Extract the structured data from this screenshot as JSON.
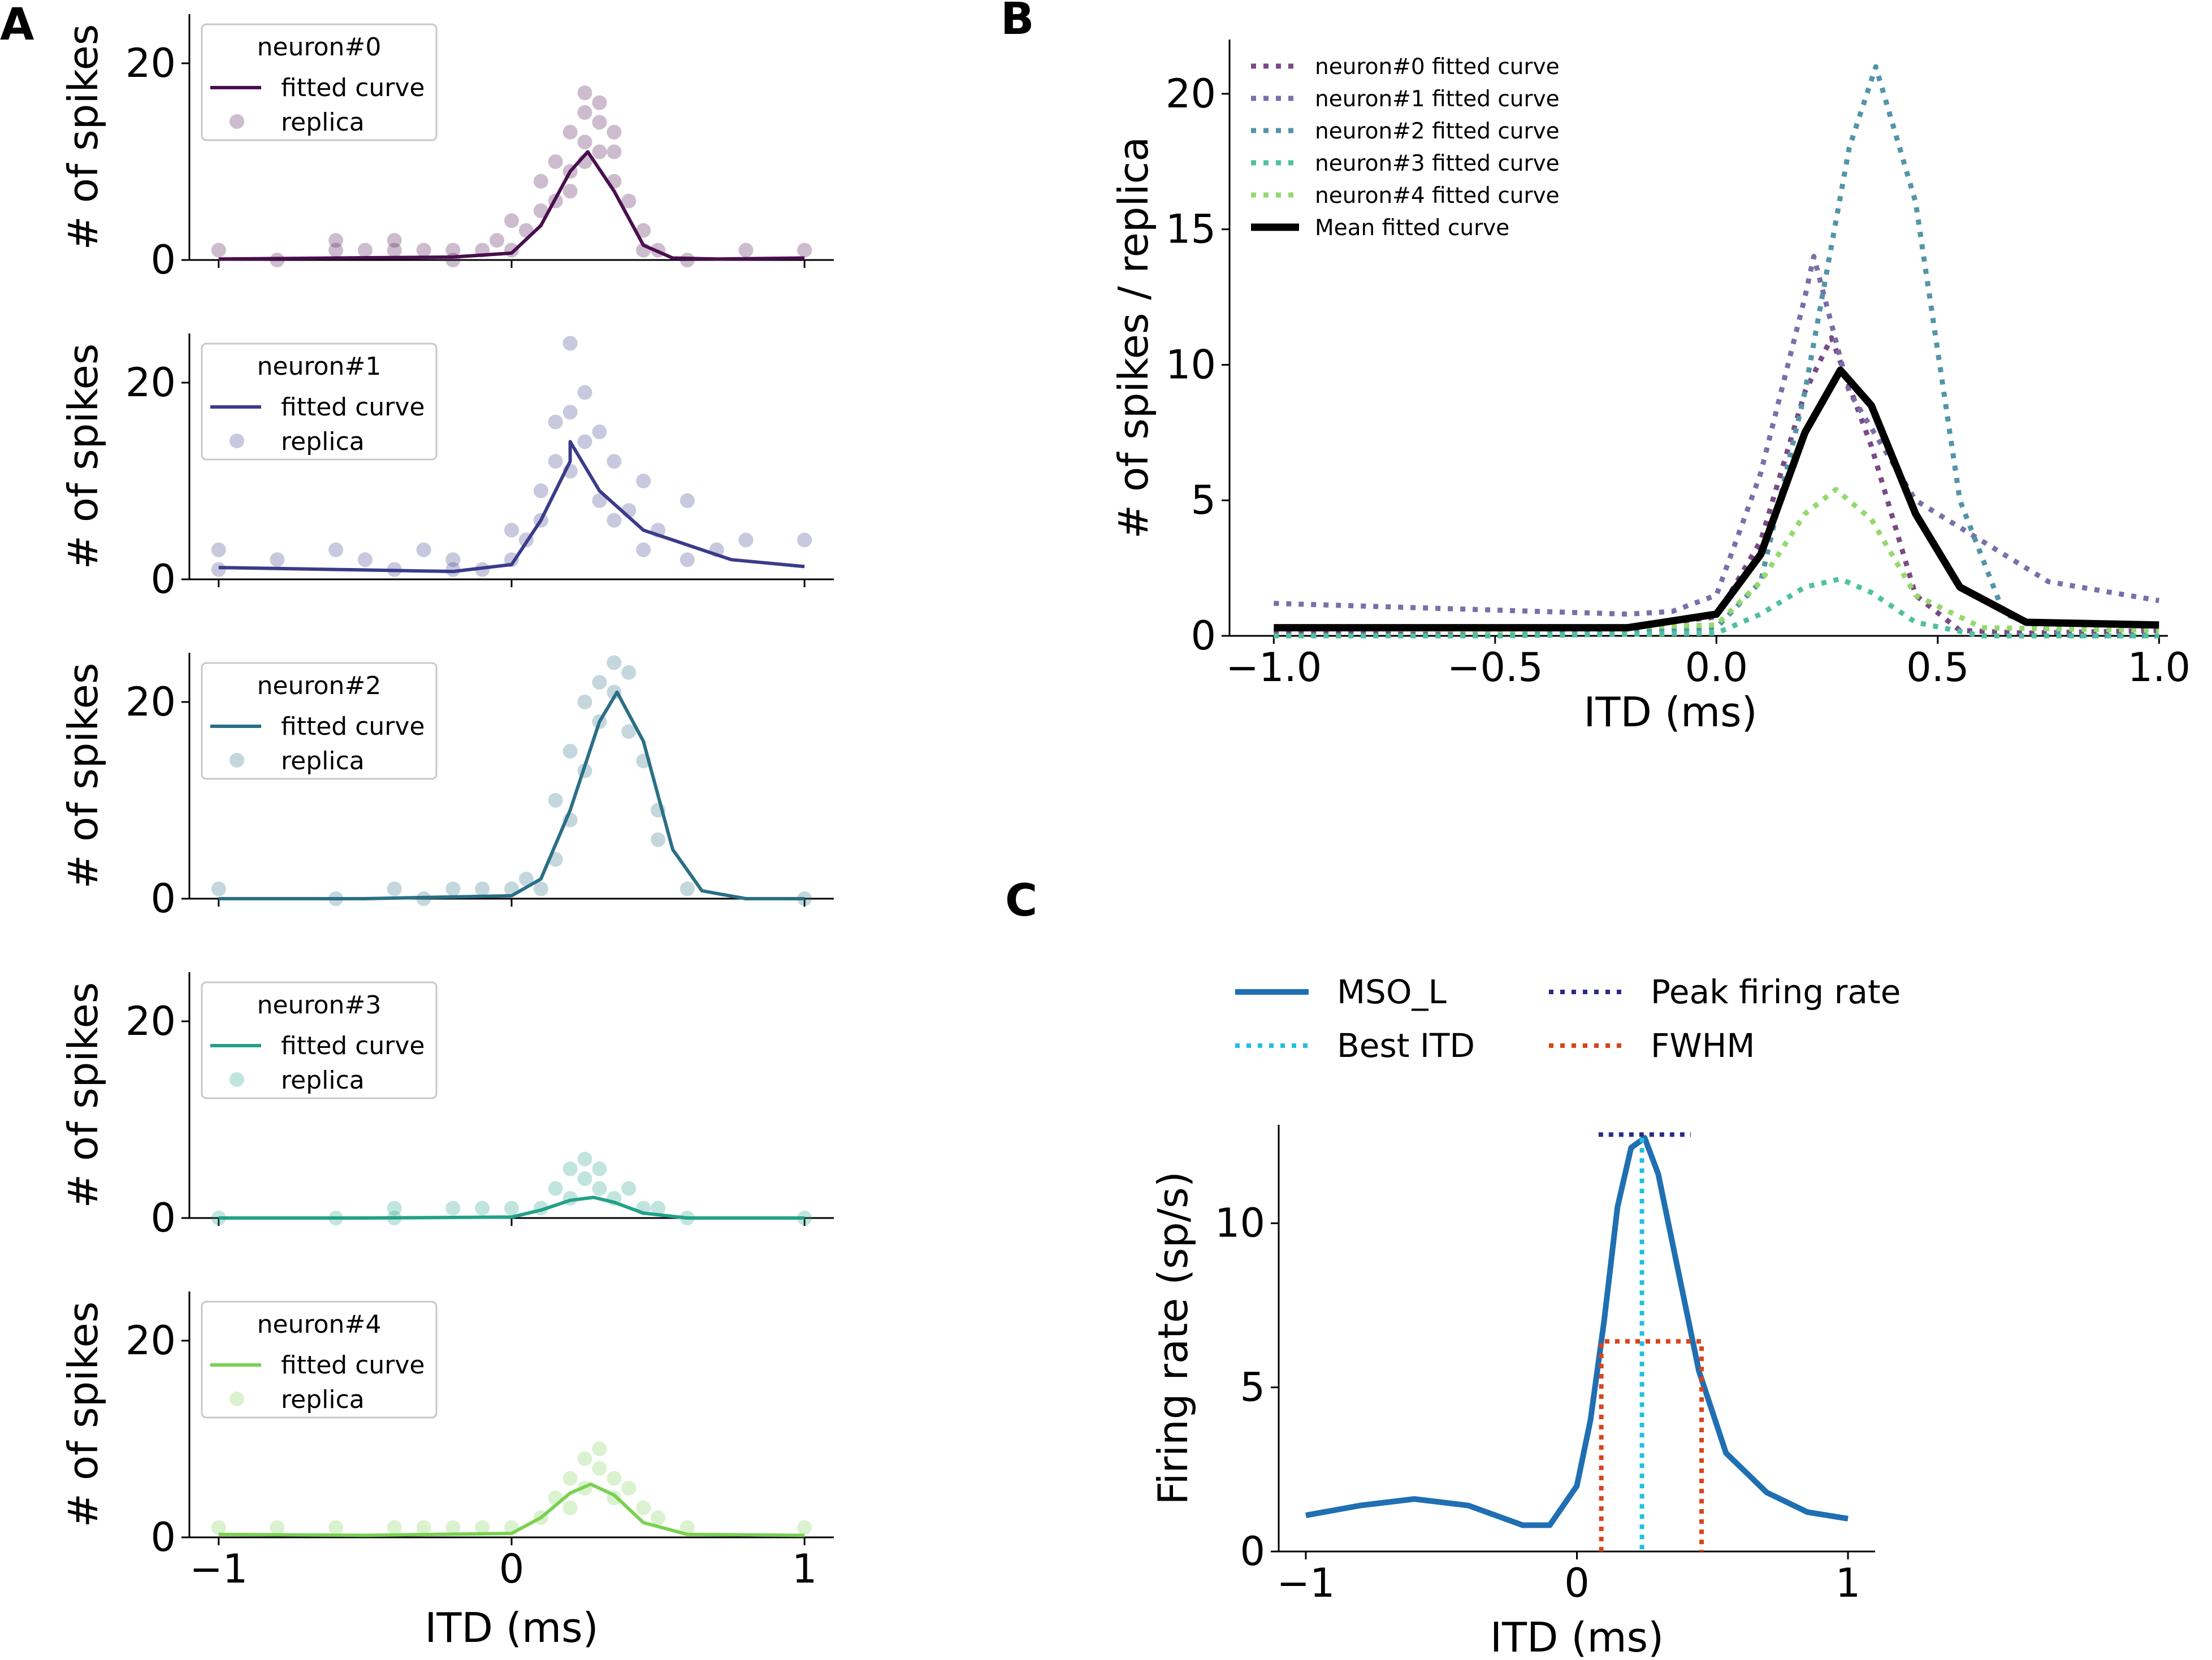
{
  "figure": {
    "panel_labels": [
      "A",
      "B",
      "C"
    ]
  },
  "chart_data": [
    {
      "panel": "A",
      "type": "scatter+line",
      "stacked_subplots": [
        {
          "legend_title": "neuron#0",
          "color": "#4a0e4e",
          "fitted_label": "fitted curve",
          "replica_label": "replica",
          "curve": {
            "x": [
              -1.0,
              -0.6,
              -0.2,
              0.0,
              0.1,
              0.2,
              0.26,
              0.35,
              0.45,
              0.55,
              0.7,
              1.0
            ],
            "y": [
              0.1,
              0.2,
              0.3,
              0.7,
              3.5,
              9.0,
              11.0,
              7.0,
              1.5,
              0.2,
              0.1,
              0.2
            ]
          },
          "replica": {
            "x": [
              -1,
              -0.8,
              -0.6,
              -0.6,
              -0.5,
              -0.4,
              -0.4,
              -0.3,
              -0.2,
              -0.2,
              -0.1,
              -0.05,
              0,
              0,
              0.05,
              0.1,
              0.1,
              0.15,
              0.15,
              0.2,
              0.2,
              0.2,
              0.25,
              0.25,
              0.25,
              0.25,
              0.3,
              0.3,
              0.3,
              0.35,
              0.35,
              0.35,
              0.4,
              0.45,
              0.45,
              0.5,
              0.6,
              0.8,
              1.0
            ],
            "y": [
              1,
              0,
              1,
              2,
              1,
              1,
              2,
              1,
              0,
              1,
              1,
              2,
              1,
              4,
              3,
              5,
              8,
              6,
              10,
              9,
              13,
              7,
              12,
              15,
              17,
              10,
              16,
              11,
              14,
              13,
              8,
              11,
              6,
              3,
              1,
              1,
              0,
              1,
              1
            ]
          }
        },
        {
          "legend_title": "neuron#1",
          "color": "#3b3b8a",
          "fitted_label": "fitted curve",
          "replica_label": "replica",
          "curve": {
            "x": [
              -1.0,
              -0.6,
              -0.2,
              0.0,
              0.1,
              0.2,
              0.2,
              0.3,
              0.45,
              0.55,
              0.75,
              1.0
            ],
            "y": [
              1.2,
              1.0,
              0.8,
              1.5,
              6.0,
              12.0,
              14.0,
              9.0,
              5.0,
              4.0,
              2.0,
              1.3
            ]
          },
          "replica": {
            "x": [
              -1,
              -1,
              -0.8,
              -0.6,
              -0.5,
              -0.4,
              -0.3,
              -0.2,
              -0.2,
              -0.1,
              0,
              0,
              0.05,
              0.1,
              0.1,
              0.15,
              0.15,
              0.2,
              0.2,
              0.2,
              0.25,
              0.25,
              0.3,
              0.3,
              0.35,
              0.35,
              0.4,
              0.45,
              0.45,
              0.5,
              0.6,
              0.6,
              0.7,
              0.8,
              1.0
            ],
            "y": [
              3,
              1,
              2,
              3,
              2,
              1,
              3,
              1,
              2,
              1,
              2,
              5,
              4,
              9,
              6,
              12,
              16,
              17,
              24,
              11,
              14,
              19,
              8,
              15,
              12,
              6,
              7,
              10,
              3,
              5,
              8,
              2,
              3,
              4,
              4
            ]
          }
        },
        {
          "legend_title": "neuron#2",
          "color": "#2a6f85",
          "fitted_label": "fitted curve",
          "replica_label": "replica",
          "curve": {
            "x": [
              -1.0,
              -0.5,
              0.0,
              0.1,
              0.2,
              0.3,
              0.36,
              0.45,
              0.55,
              0.65,
              0.8,
              1.0
            ],
            "y": [
              0.0,
              0.0,
              0.3,
              2.0,
              9.0,
              18.0,
              21.0,
              16.0,
              5.0,
              0.8,
              0.0,
              0.0
            ]
          },
          "replica": {
            "x": [
              -1,
              -0.6,
              -0.4,
              -0.3,
              -0.2,
              -0.1,
              0,
              0.05,
              0.1,
              0.15,
              0.15,
              0.2,
              0.2,
              0.25,
              0.25,
              0.3,
              0.3,
              0.35,
              0.35,
              0.4,
              0.4,
              0.45,
              0.5,
              0.5,
              0.6,
              1.0
            ],
            "y": [
              1,
              0,
              1,
              0,
              1,
              1,
              1,
              2,
              1,
              4,
              10,
              15,
              8,
              20,
              13,
              22,
              18,
              24,
              21,
              23,
              17,
              14,
              9,
              6,
              1,
              0
            ]
          }
        },
        {
          "legend_title": "neuron#3",
          "color": "#22a188",
          "fitted_label": "fitted curve",
          "replica_label": "replica",
          "curve": {
            "x": [
              -1.0,
              -0.5,
              0.0,
              0.1,
              0.2,
              0.28,
              0.35,
              0.45,
              0.6,
              1.0
            ],
            "y": [
              0.0,
              0.0,
              0.1,
              0.8,
              1.8,
              2.1,
              1.6,
              0.5,
              0.0,
              0.0
            ]
          },
          "replica": {
            "x": [
              -1,
              -0.6,
              -0.4,
              -0.4,
              -0.2,
              -0.1,
              0,
              0.1,
              0.15,
              0.2,
              0.2,
              0.25,
              0.25,
              0.3,
              0.3,
              0.35,
              0.4,
              0.45,
              0.5,
              0.6,
              1.0
            ],
            "y": [
              0,
              0,
              1,
              0,
              1,
              1,
              1,
              1,
              3,
              2,
              5,
              4,
              6,
              3,
              5,
              2,
              3,
              1,
              1,
              0,
              0
            ]
          }
        },
        {
          "legend_title": "neuron#4",
          "color": "#7ad151",
          "fitted_label": "fitted curve",
          "replica_label": "replica",
          "curve": {
            "x": [
              -1.0,
              -0.5,
              0.0,
              0.1,
              0.2,
              0.27,
              0.35,
              0.45,
              0.6,
              1.0
            ],
            "y": [
              0.3,
              0.2,
              0.4,
              2.0,
              4.5,
              5.4,
              4.3,
              1.5,
              0.3,
              0.2
            ]
          },
          "replica": {
            "x": [
              -1,
              -0.8,
              -0.6,
              -0.4,
              -0.3,
              -0.2,
              -0.1,
              0,
              0.1,
              0.15,
              0.2,
              0.2,
              0.25,
              0.25,
              0.3,
              0.3,
              0.35,
              0.35,
              0.4,
              0.45,
              0.5,
              0.6,
              1.0
            ],
            "y": [
              1,
              1,
              1,
              1,
              1,
              1,
              1,
              1,
              2,
              4,
              6,
              3,
              8,
              5,
              9,
              7,
              6,
              4,
              5,
              3,
              2,
              1,
              1
            ]
          }
        }
      ],
      "ylabel": "# of spikes",
      "xlabel": "ITD (ms)",
      "xlim": [
        -1.1,
        1.1
      ],
      "ylim": [
        0,
        25
      ],
      "xticks": [
        -1,
        0,
        1
      ],
      "xtick_labels": [
        "−1",
        "0",
        "1"
      ],
      "yticks": [
        0,
        20
      ],
      "ytick_labels": [
        "0",
        "20"
      ]
    },
    {
      "panel": "B",
      "type": "line",
      "series": [
        {
          "name": "neuron#0 fitted curve",
          "color": "#7a4a86",
          "dash": "dotted",
          "x": [
            -1.0,
            -0.5,
            -0.2,
            0.0,
            0.1,
            0.2,
            0.26,
            0.35,
            0.45,
            0.55,
            0.7,
            1.0
          ],
          "y": [
            0.1,
            0.2,
            0.3,
            0.7,
            3.5,
            9.0,
            11.0,
            7.0,
            1.5,
            0.2,
            0.1,
            0.2
          ]
        },
        {
          "name": "neuron#1 fitted curve",
          "color": "#7b6fa8",
          "dash": "dotted",
          "x": [
            -1.0,
            -0.6,
            -0.2,
            -0.1,
            0.0,
            0.1,
            0.2,
            0.22,
            0.3,
            0.45,
            0.55,
            0.75,
            1.0
          ],
          "y": [
            1.2,
            1.0,
            0.8,
            0.9,
            1.5,
            6.0,
            12.5,
            14.0,
            9.0,
            5.0,
            4.0,
            2.0,
            1.3
          ]
        },
        {
          "name": "neuron#2 fitted curve",
          "color": "#5295a8",
          "dash": "dotted",
          "x": [
            -1.0,
            -0.5,
            0.0,
            0.1,
            0.2,
            0.3,
            0.36,
            0.45,
            0.55,
            0.65,
            0.8,
            1.0
          ],
          "y": [
            0.0,
            0.0,
            0.3,
            2.0,
            9.0,
            18.0,
            21.0,
            16.0,
            5.0,
            0.8,
            0.0,
            0.0
          ]
        },
        {
          "name": "neuron#3 fitted curve",
          "color": "#4fc0a0",
          "dash": "dotted",
          "x": [
            -1.0,
            -0.5,
            0.0,
            0.1,
            0.2,
            0.28,
            0.35,
            0.45,
            0.6,
            1.0
          ],
          "y": [
            0.0,
            0.0,
            0.1,
            0.8,
            1.8,
            2.1,
            1.6,
            0.5,
            0.0,
            0.0
          ]
        },
        {
          "name": "neuron#4 fitted curve",
          "color": "#94d96e",
          "dash": "dotted",
          "x": [
            -1.0,
            -0.5,
            0.0,
            0.1,
            0.2,
            0.27,
            0.35,
            0.45,
            0.6,
            1.0
          ],
          "y": [
            0.3,
            0.2,
            0.4,
            2.0,
            4.5,
            5.4,
            4.3,
            1.5,
            0.3,
            0.2
          ]
        },
        {
          "name": "Mean fitted curve",
          "color": "#000000",
          "dash": "solid",
          "x": [
            -1.0,
            -0.5,
            -0.2,
            0.0,
            0.1,
            0.2,
            0.28,
            0.35,
            0.45,
            0.55,
            0.7,
            1.0
          ],
          "y": [
            0.3,
            0.3,
            0.3,
            0.8,
            3.0,
            7.5,
            9.8,
            8.5,
            4.5,
            1.8,
            0.5,
            0.4
          ]
        }
      ],
      "ylabel": "# of spikes / replica",
      "xlabel": "ITD (ms)",
      "xlim": [
        -1.1,
        1.02
      ],
      "ylim": [
        0,
        22
      ],
      "xticks": [
        -1.0,
        -0.5,
        0.0,
        0.5,
        1.0
      ],
      "xtick_labels": [
        "−1.0",
        "−0.5",
        "0.0",
        "0.5",
        "1.0"
      ],
      "yticks": [
        0,
        5,
        10,
        15,
        20
      ],
      "ytick_labels": [
        "0",
        "5",
        "10",
        "15",
        "20"
      ],
      "legend_position": "top-left"
    },
    {
      "panel": "C",
      "type": "line",
      "series": [
        {
          "name": "MSO_L",
          "color": "#1f6fb2",
          "dash": "solid",
          "x": [
            -1.0,
            -0.8,
            -0.6,
            -0.4,
            -0.2,
            -0.1,
            0.0,
            0.05,
            0.1,
            0.15,
            0.2,
            0.25,
            0.3,
            0.35,
            0.45,
            0.55,
            0.7,
            0.85,
            1.0
          ],
          "y": [
            1.1,
            1.4,
            1.6,
            1.4,
            0.8,
            0.8,
            2.0,
            4.0,
            7.0,
            10.5,
            12.3,
            12.6,
            11.5,
            9.5,
            5.5,
            3.0,
            1.8,
            1.2,
            1.0
          ]
        }
      ],
      "annotations": [
        {
          "name": "Best ITD",
          "color": "#1fc0e0",
          "kind": "vertical",
          "x": 0.24,
          "y_top": 12.6
        },
        {
          "name": "Peak firing rate",
          "color": "#2a2a85",
          "kind": "horizontal",
          "y": 12.7,
          "x_from": 0.08,
          "x_to": 0.42
        },
        {
          "name": "FWHM",
          "color": "#d9441c",
          "kind": "bracket",
          "y": 6.4,
          "x_from": 0.09,
          "x_to": 0.46
        }
      ],
      "ylabel": "Firing rate (sp/s)",
      "xlabel": "ITD (ms)",
      "xlim": [
        -1.1,
        1.1
      ],
      "ylim": [
        0,
        13
      ],
      "xticks": [
        -1,
        0,
        1
      ],
      "xtick_labels": [
        "−1",
        "0",
        "1"
      ],
      "yticks": [
        0,
        5,
        10
      ],
      "ytick_labels": [
        "0",
        "5",
        "10"
      ],
      "legend_position": "top"
    }
  ]
}
